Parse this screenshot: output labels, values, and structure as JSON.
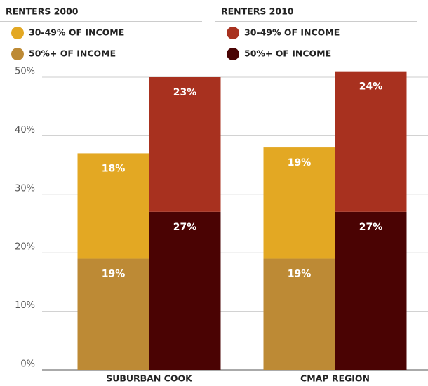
{
  "chart_data": {
    "type": "bar",
    "stacked": true,
    "categories": [
      "SUBURBAN COOK",
      "CMAP REGION"
    ],
    "ylim": [
      0,
      50
    ],
    "yticks": [
      {
        "value": 0,
        "label": "0%"
      },
      {
        "value": 10,
        "label": "10%"
      },
      {
        "value": 20,
        "label": "20%"
      },
      {
        "value": 30,
        "label": "30%"
      },
      {
        "value": 40,
        "label": "40%"
      },
      {
        "value": 50,
        "label": "50%"
      }
    ],
    "grid": true,
    "groups": [
      {
        "name": "RENTERS 2000",
        "series": [
          {
            "name": "30-49% OF INCOME",
            "color": "#e3a823",
            "values": [
              18,
              19
            ],
            "value_labels": [
              "18%",
              "19%"
            ]
          },
          {
            "name": "50%+ OF INCOME",
            "color": "#bd8a35",
            "values": [
              19,
              19
            ],
            "value_labels": [
              "19%",
              "19%"
            ]
          }
        ]
      },
      {
        "name": "RENTERS 2010",
        "series": [
          {
            "name": "30-49% OF INCOME",
            "color": "#a8311f",
            "values": [
              23,
              24
            ],
            "value_labels": [
              "23%",
              "24%"
            ]
          },
          {
            "name": "50%+ OF INCOME",
            "color": "#4a0303",
            "values": [
              27,
              27
            ],
            "value_labels": [
              "27%",
              "27%"
            ]
          }
        ]
      }
    ]
  }
}
